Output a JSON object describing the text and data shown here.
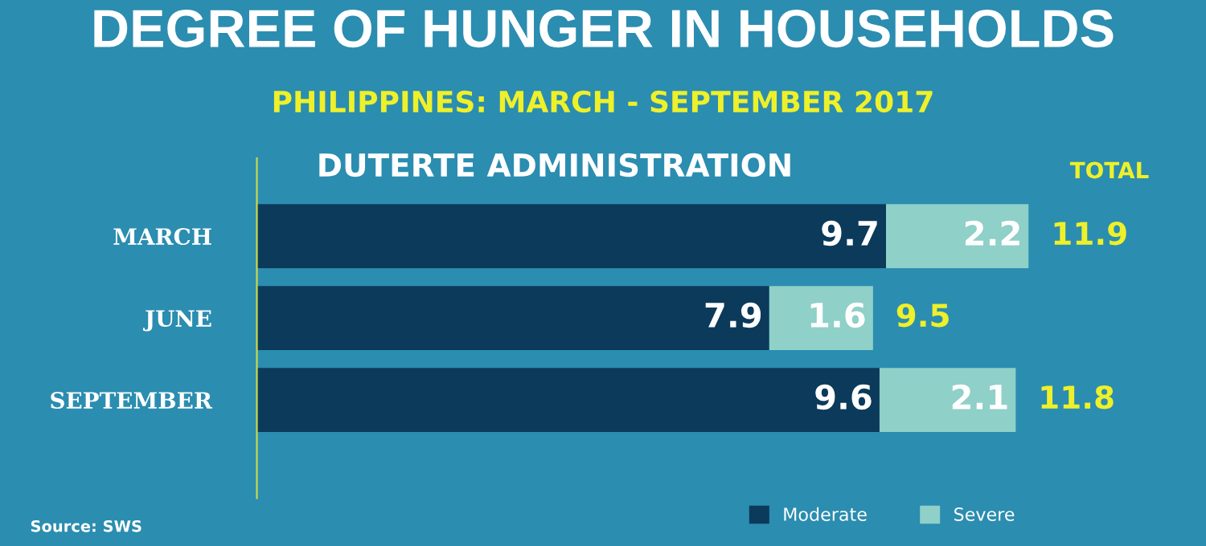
{
  "chart_data": {
    "type": "bar",
    "orientation": "horizontal",
    "stacked": true,
    "title": "DEGREE OF HUNGER IN HOUSEHOLDS",
    "subtitle": "PHILIPPINES: MARCH - SEPTEMBER 2017",
    "categories": [
      "MARCH",
      "JUNE",
      "SEPTEMBER"
    ],
    "series": [
      {
        "name": "Moderate",
        "color": "#0c3a5b",
        "values": [
          9.7,
          7.9,
          9.6
        ]
      },
      {
        "name": "Severe",
        "color": "#8fd0c8",
        "values": [
          2.2,
          1.6,
          2.1
        ]
      }
    ],
    "data_labels": true,
    "totals": [
      "11.9",
      "9.5",
      "11.8"
    ],
    "legend": "bottom right",
    "grid": false,
    "annotations": [
      "DUTERTE ADMINISTRATION",
      "TOTAL",
      "Source: SWS"
    ]
  }
}
